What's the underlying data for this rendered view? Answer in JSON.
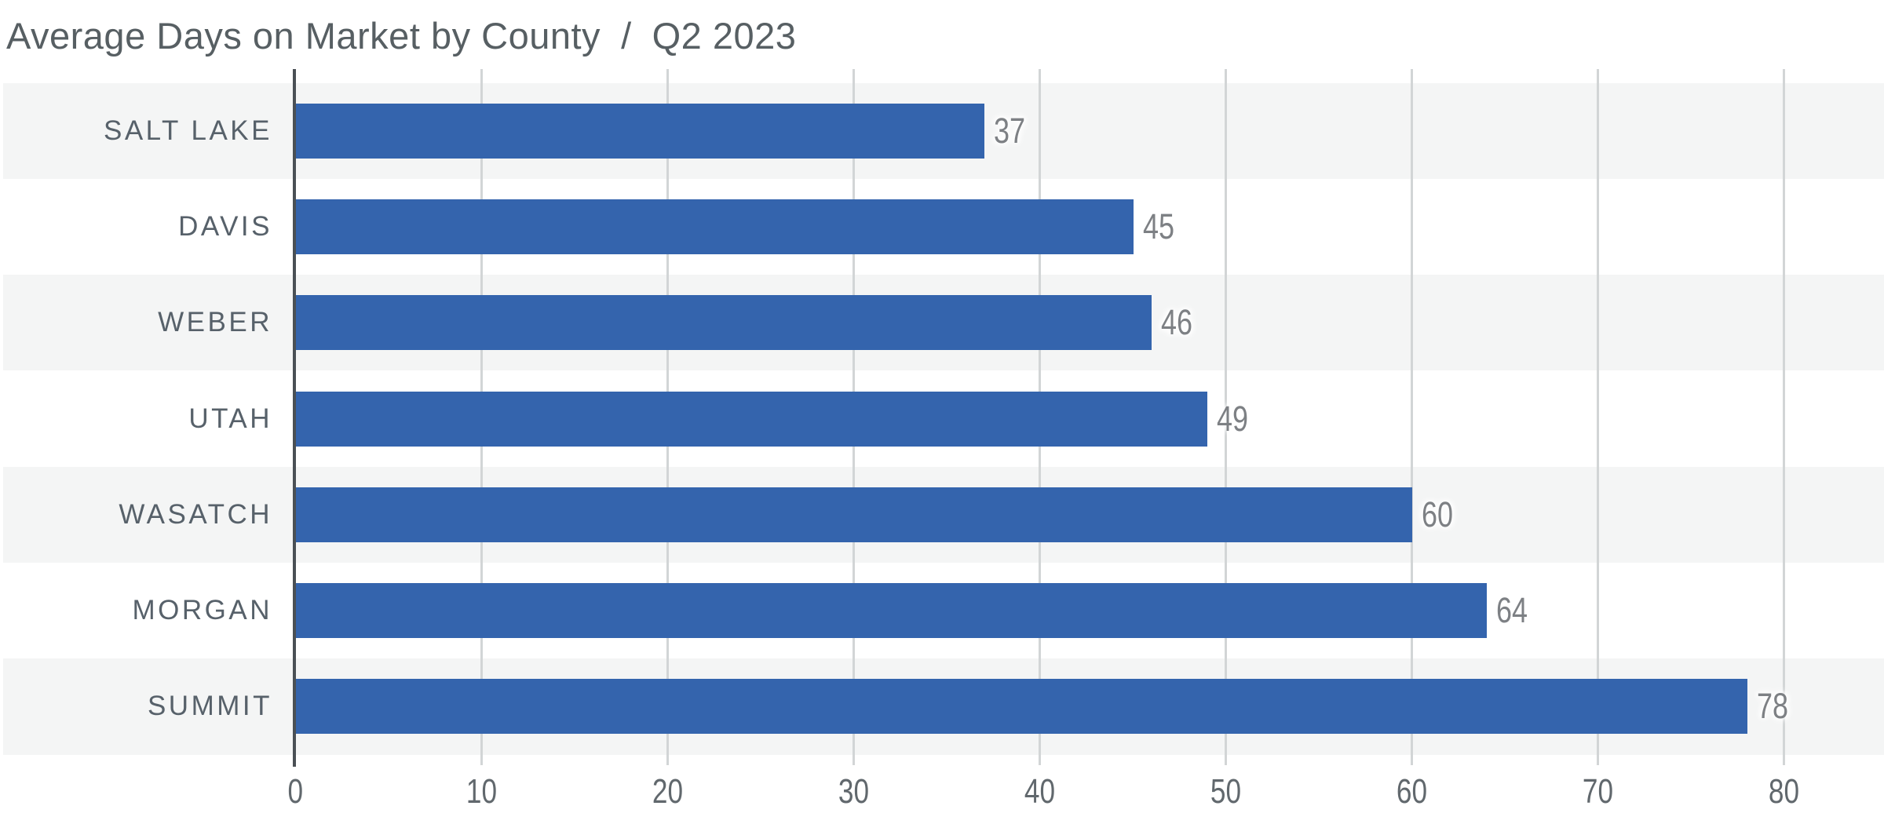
{
  "title": {
    "main": "Average Days on Market by County",
    "separator": "/",
    "period": "Q2 2023"
  },
  "chart_data": {
    "type": "bar",
    "orientation": "horizontal",
    "title": "Average Days on Market by County / Q2 2023",
    "categories": [
      "SALT LAKE",
      "DAVIS",
      "WEBER",
      "UTAH",
      "WASATCH",
      "MORGAN",
      "SUMMIT"
    ],
    "values": [
      37,
      45,
      46,
      49,
      60,
      64,
      78
    ],
    "value_labels": [
      "37",
      "45",
      "46",
      "49",
      "60",
      "64",
      "78"
    ],
    "xlabel": "",
    "ylabel": "",
    "xlim": [
      0,
      85
    ],
    "x_ticks": [
      0,
      10,
      20,
      30,
      40,
      50,
      60,
      70,
      80
    ],
    "grid": "vertical-gridlines-on",
    "legend": "none",
    "row_banding": "alternating, first row shaded",
    "bar_color": "#3464ad",
    "band_color": "#f4f5f5",
    "axis_color": "#4a5055",
    "gridline_color": "#d2d5d6",
    "title_color": "#575f63",
    "category_label_color": "#57616a",
    "value_label_color": "#7d8084",
    "tick_label_color": "#61686d"
  }
}
